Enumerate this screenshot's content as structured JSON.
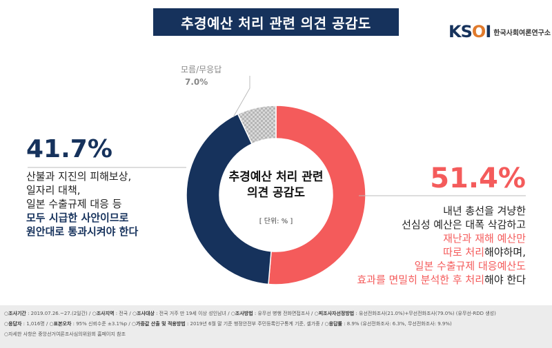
{
  "header": {
    "title": "추경예산 처리 관련 의견 공감도"
  },
  "logo": {
    "mark_k": "K",
    "mark_s": "S",
    "mark_o": "O",
    "mark_i": "I",
    "name": "한국사회여론연구소"
  },
  "center": {
    "title_line1": "추경예산 처리 관련",
    "title_line2": "의견 공감도",
    "unit": "[ 단위: % ]"
  },
  "chart_data": {
    "type": "pie",
    "style": "donut",
    "slices": [
      {
        "label": "내년 총선을 겨냥한 선심성 예산은 대폭 삭감하고 재난과 재해 예산만 따로 처리해야하며, 일본 수출규제 대응예산도 효과를 면밀히 분석한 후 처리해야 한다",
        "value": 51.4,
        "value_label": "51.4%",
        "color": "#f45b5b"
      },
      {
        "label": "산불과 지진의 피해보상, 일자리 대책, 일본 수출규제 대응 등 모두 시급한 사안이므로 원안대로 통과시켜야 한다",
        "value": 41.7,
        "value_label": "41.7%",
        "color": "#16325c"
      },
      {
        "label": "모름/무응답",
        "value": 7.0,
        "value_label": "7.0%",
        "color": "#bdbdbd"
      }
    ]
  },
  "left": {
    "line1": "산불과 지진의 피해보상,",
    "line2": "일자리 대책,",
    "line3": "일본 수출규제 대응 등",
    "line4": "모두 시급한 사안이므로",
    "line5": "원안대로 통과시켜야 한다"
  },
  "right": {
    "line1": "내년 총선을 겨냥한",
    "line2": "선심성 예산은 대폭 삭감하고",
    "line3a": "재난과 재해 예산만",
    "line4a": "따로 처리",
    "line4b": "해야하며,",
    "line5a": "일본 수출규제 대응예산도",
    "line6a": "효과를 면밀히 분석한 후 처리",
    "line6b": "해야 한다"
  },
  "footer": {
    "l1": [
      {
        "k": "조사기간",
        "v": " : 2019.07.26.~27.(2일간) / "
      },
      {
        "k": "조사지역",
        "v": " : 전국 / "
      },
      {
        "k": "조사대상",
        "v": " : 전국 거주 만 19세 이상 성인남녀 / "
      },
      {
        "k": "조사방법",
        "v": " : 유무선 병행 전화면접조사 / "
      },
      {
        "k": "피조사자선정방법",
        "v": " : 유선전화조사(21.0%)+무선전화조사(79.0%) (유무선-RDD 생성)"
      }
    ],
    "l2": [
      {
        "k": "응답자",
        "v": " : 1,016명 / "
      },
      {
        "k": "표본오차",
        "v": " : 95% 신뢰수준 ±3.1%p / "
      },
      {
        "k": "가중값 산출 및 적용방법",
        "v": " : 2019년 6월 말 기준 행정안전부 주민등록인구통계 기준, 셀가중 / "
      },
      {
        "k": "응답률",
        "v": " : 8.9% (유선전화조사: 6.3%, 무선전화조사: 9.9%)"
      }
    ],
    "l3": "자세한 사항은 중앙선거여론조사심의위원회 홈페이지 참조"
  }
}
